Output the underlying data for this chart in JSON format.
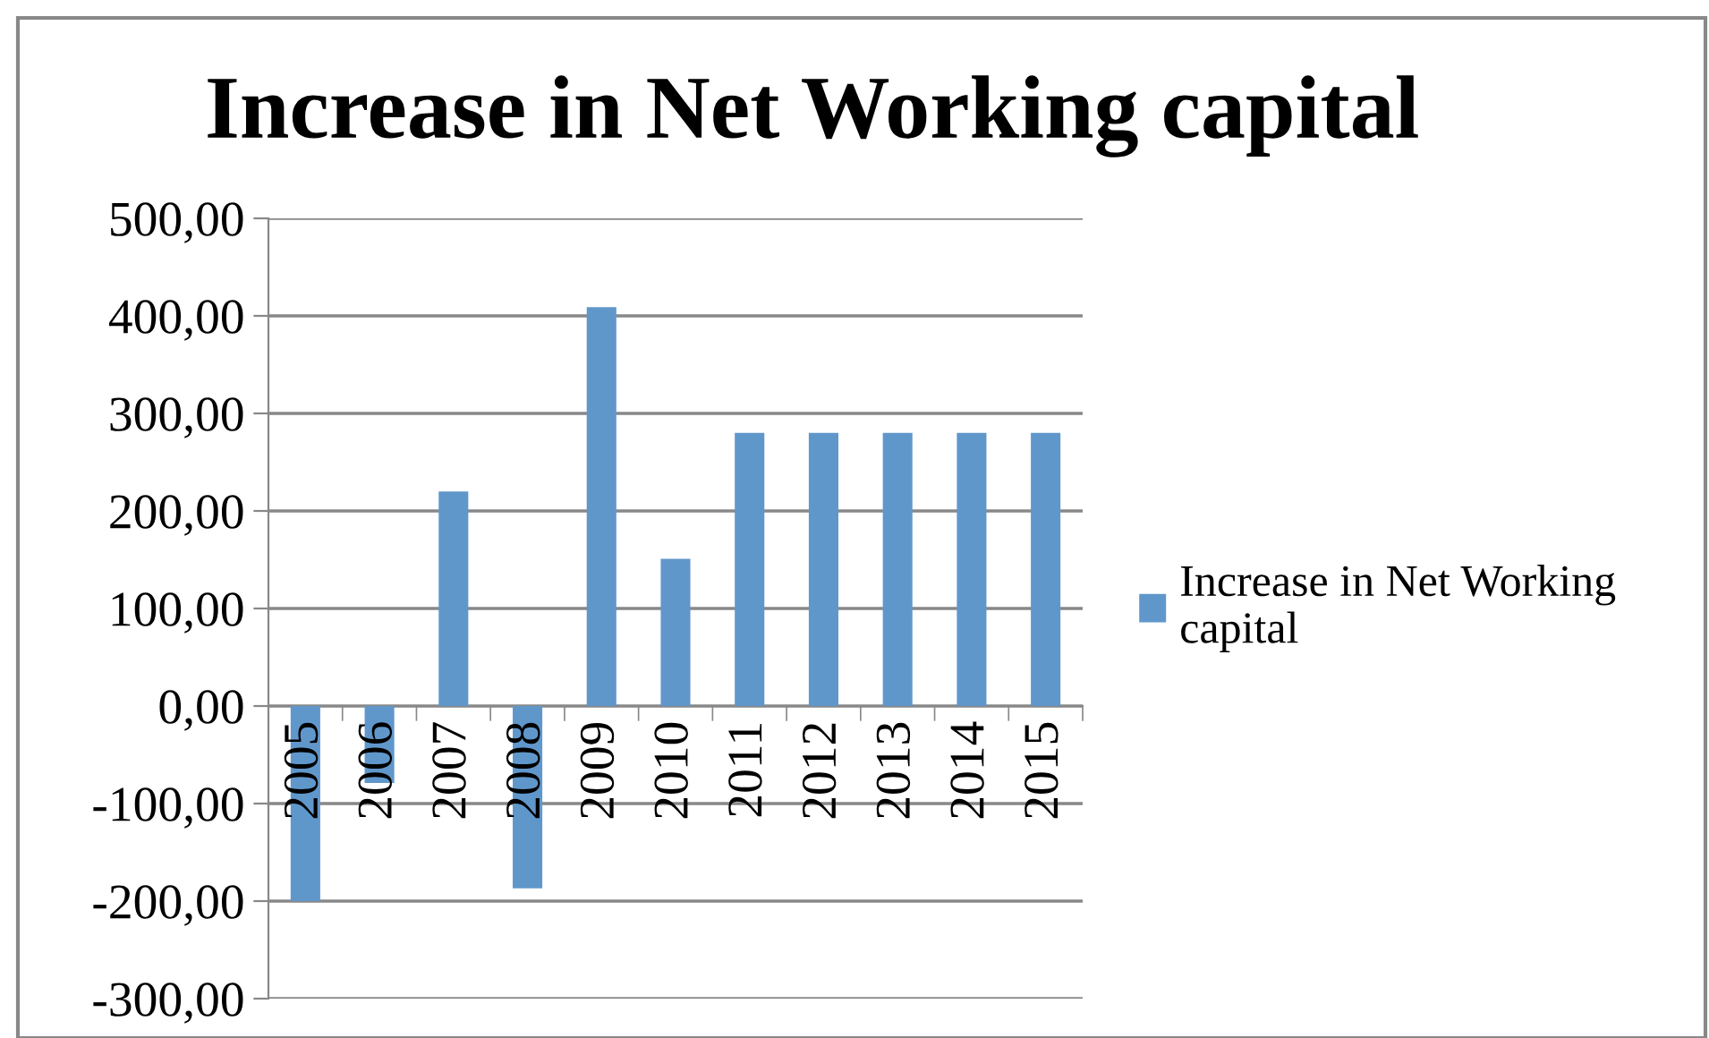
{
  "chart_data": {
    "type": "bar",
    "title": "Increase in Net Working capital",
    "categories": [
      "2005",
      "2006",
      "2007",
      "2008",
      "2009",
      "2010",
      "2011",
      "2012",
      "2013",
      "2014",
      "2015"
    ],
    "series": [
      {
        "name": "Increase in Net Working capital",
        "color": "#6097cb",
        "values": [
          -200,
          -79,
          220,
          -187,
          409,
          151,
          280,
          280,
          280,
          280,
          280
        ]
      }
    ],
    "ylim": [
      -300,
      500
    ],
    "yticks": [
      {
        "value": -300,
        "label": "-300,00"
      },
      {
        "value": -200,
        "label": "-200,00"
      },
      {
        "value": -100,
        "label": "-100,00"
      },
      {
        "value": 0,
        "label": "0,00"
      },
      {
        "value": 100,
        "label": "100,00"
      },
      {
        "value": 200,
        "label": "200,00"
      },
      {
        "value": 300,
        "label": "300,00"
      },
      {
        "value": 400,
        "label": "400,00"
      },
      {
        "value": 500,
        "label": "500,00"
      }
    ],
    "grid": "y",
    "legend": "right"
  }
}
